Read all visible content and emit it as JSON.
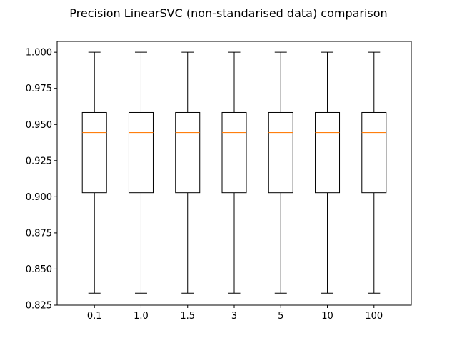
{
  "chart_data": {
    "type": "box",
    "title": "Precision LinearSVC (non-standarised data) comparison",
    "xlabel": "",
    "ylabel": "",
    "categories": [
      "0.1",
      "1.0",
      "1.5",
      "3",
      "5",
      "10",
      "100"
    ],
    "boxes": [
      {
        "category": "0.1",
        "whisker_low": 0.8333,
        "q1": 0.9028,
        "median": 0.9444,
        "q3": 0.9583,
        "whisker_high": 1.0
      },
      {
        "category": "1.0",
        "whisker_low": 0.8333,
        "q1": 0.9028,
        "median": 0.9444,
        "q3": 0.9583,
        "whisker_high": 1.0
      },
      {
        "category": "1.5",
        "whisker_low": 0.8333,
        "q1": 0.9028,
        "median": 0.9444,
        "q3": 0.9583,
        "whisker_high": 1.0
      },
      {
        "category": "3",
        "whisker_low": 0.8333,
        "q1": 0.9028,
        "median": 0.9444,
        "q3": 0.9583,
        "whisker_high": 1.0
      },
      {
        "category": "5",
        "whisker_low": 0.8333,
        "q1": 0.9028,
        "median": 0.9444,
        "q3": 0.9583,
        "whisker_high": 1.0
      },
      {
        "category": "10",
        "whisker_low": 0.8333,
        "q1": 0.9028,
        "median": 0.9444,
        "q3": 0.9583,
        "whisker_high": 1.0
      },
      {
        "category": "100",
        "whisker_low": 0.8333,
        "q1": 0.9028,
        "median": 0.9444,
        "q3": 0.9583,
        "whisker_high": 1.0
      }
    ],
    "ylim": [
      0.825,
      1.0075
    ],
    "yticks": [
      0.825,
      0.85,
      0.875,
      0.9,
      0.925,
      0.95,
      0.975,
      1.0
    ],
    "ytick_labels": [
      "0.825",
      "0.850",
      "0.875",
      "0.900",
      "0.925",
      "0.950",
      "0.975",
      "1.000"
    ],
    "grid": false,
    "colors": {
      "box": "#000000",
      "median": "#ff7f0e",
      "background": "#ffffff"
    }
  }
}
